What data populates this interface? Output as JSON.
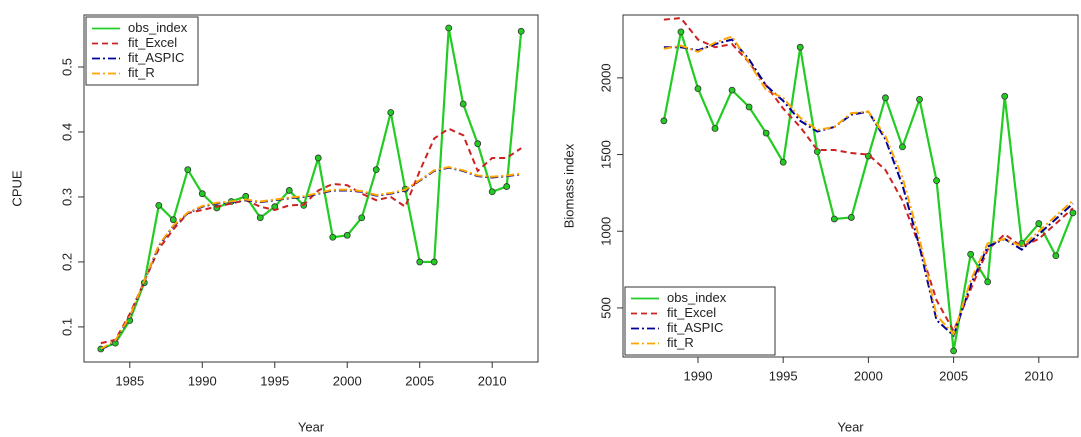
{
  "chart_data": [
    {
      "type": "line",
      "x_label": "Year",
      "y_label": "CPUE",
      "x": [
        1983,
        1984,
        1985,
        1986,
        1987,
        1988,
        1989,
        1990,
        1991,
        1992,
        1993,
        1994,
        1995,
        1996,
        1997,
        1998,
        1999,
        2000,
        2001,
        2002,
        2003,
        2004,
        2005,
        2006,
        2007,
        2008,
        2009,
        2010,
        2011,
        2012
      ],
      "xlim": [
        1981.84,
        2013.16
      ],
      "xticks": [
        1985,
        1990,
        1995,
        2000,
        2005,
        2010
      ],
      "ylim": [
        0.046,
        0.58
      ],
      "yticks": [
        0.1,
        0.2,
        0.3,
        0.4,
        0.5
      ],
      "legend": "top-left",
      "series": [
        {
          "name": "obs_index",
          "color": "#22cc22",
          "linestyle": "solid",
          "marker": "circle",
          "values": [
            0.066,
            0.075,
            0.11,
            0.168,
            0.287,
            0.265,
            0.342,
            0.305,
            0.283,
            0.293,
            0.301,
            0.268,
            0.285,
            0.31,
            0.287,
            0.36,
            0.238,
            0.241,
            0.268,
            0.342,
            0.43,
            0.312,
            0.2,
            0.2,
            0.56,
            0.443,
            0.382,
            0.308,
            0.316,
            0.555
          ]
        },
        {
          "name": "fit_Excel",
          "color": "#cc2222",
          "linestyle": "dashed",
          "values": [
            0.075,
            0.08,
            0.12,
            0.17,
            0.22,
            0.25,
            0.275,
            0.28,
            0.285,
            0.29,
            0.295,
            0.285,
            0.28,
            0.287,
            0.288,
            0.31,
            0.32,
            0.318,
            0.305,
            0.295,
            0.3,
            0.285,
            0.34,
            0.39,
            0.405,
            0.395,
            0.34,
            0.36,
            0.36,
            0.375
          ]
        },
        {
          "name": "fit_ASPIC",
          "color": "#000099",
          "linestyle": "dashdot",
          "values": [
            0.065,
            0.078,
            0.115,
            0.17,
            0.225,
            0.255,
            0.275,
            0.285,
            0.29,
            0.292,
            0.295,
            0.292,
            0.295,
            0.298,
            0.3,
            0.305,
            0.31,
            0.31,
            0.308,
            0.302,
            0.305,
            0.31,
            0.325,
            0.34,
            0.345,
            0.34,
            0.332,
            0.33,
            0.332,
            0.335
          ]
        },
        {
          "name": "fit_R",
          "color": "#ffa500",
          "linestyle": "dashdot",
          "values": [
            0.066,
            0.079,
            0.116,
            0.171,
            0.226,
            0.256,
            0.276,
            0.286,
            0.291,
            0.293,
            0.296,
            0.293,
            0.296,
            0.299,
            0.301,
            0.306,
            0.311,
            0.311,
            0.309,
            0.303,
            0.306,
            0.311,
            0.326,
            0.341,
            0.346,
            0.341,
            0.333,
            0.331,
            0.333,
            0.336
          ]
        }
      ]
    },
    {
      "type": "line",
      "x_label": "Year",
      "y_label": "Biomass index",
      "x": [
        1988,
        1989,
        1990,
        1991,
        1992,
        1993,
        1994,
        1995,
        1996,
        1997,
        1998,
        1999,
        2000,
        2001,
        2002,
        2003,
        2004,
        2005,
        2006,
        2007,
        2008,
        2009,
        2010,
        2011,
        2012
      ],
      "xlim": [
        1985.6,
        2012.3
      ],
      "xticks": [
        1990,
        1995,
        2000,
        2005,
        2010
      ],
      "ylim": [
        180,
        2410
      ],
      "yticks": [
        500,
        1000,
        1500,
        2000
      ],
      "legend": "bottom-left",
      "series": [
        {
          "name": "obs_index",
          "color": "#22cc22",
          "linestyle": "solid",
          "marker": "circle",
          "values": [
            1720,
            2300,
            1930,
            1670,
            1920,
            1810,
            1640,
            1450,
            2200,
            1520,
            1080,
            1090,
            1490,
            1870,
            1550,
            1860,
            1330,
            220,
            850,
            670,
            1880,
            920,
            1050,
            840,
            1120
          ]
        },
        {
          "name": "fit_Excel",
          "color": "#cc2222",
          "linestyle": "dashed",
          "values": [
            2380,
            2390,
            2250,
            2200,
            2220,
            2100,
            1950,
            1800,
            1680,
            1530,
            1530,
            1510,
            1500,
            1400,
            1200,
            900,
            550,
            350,
            620,
            880,
            980,
            900,
            950,
            1050,
            1150
          ]
        },
        {
          "name": "fit_ASPIC",
          "color": "#000099",
          "linestyle": "dashdot",
          "values": [
            2200,
            2200,
            2180,
            2220,
            2250,
            2120,
            1950,
            1850,
            1720,
            1650,
            1680,
            1760,
            1780,
            1600,
            1300,
            900,
            420,
            320,
            650,
            900,
            950,
            880,
            980,
            1080,
            1180
          ]
        },
        {
          "name": "fit_R",
          "color": "#ffa500",
          "linestyle": "dashdot",
          "values": [
            2190,
            2210,
            2170,
            2230,
            2270,
            2100,
            1920,
            1870,
            1740,
            1660,
            1680,
            1770,
            1780,
            1620,
            1350,
            950,
            450,
            330,
            680,
            920,
            950,
            900,
            1000,
            1100,
            1200
          ]
        }
      ]
    }
  ]
}
